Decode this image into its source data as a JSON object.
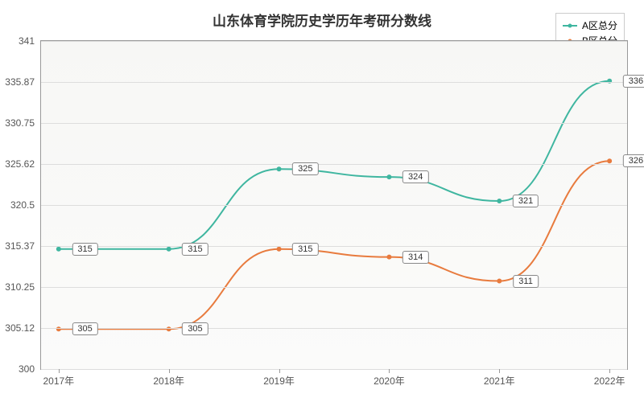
{
  "chart": {
    "title": "山东体育学院历史学历年考研分数线",
    "title_fontsize": 17,
    "title_color": "#333333",
    "background_color": "#ffffff",
    "plot_background": "linear-gradient(#f7f7f5, #fbfbfa)",
    "grid_color": "#dddddd",
    "axis_color": "#999999",
    "tick_font_color": "#555555",
    "tick_fontsize": 12,
    "x_labels": [
      "2017年",
      "2018年",
      "2019年",
      "2020年",
      "2021年",
      "2022年"
    ],
    "y_ticks": [
      300,
      305.12,
      310.25,
      315.37,
      320.5,
      325.62,
      330.75,
      335.87,
      341
    ],
    "ylim": [
      300,
      341
    ],
    "series": [
      {
        "name": "A区总分",
        "color": "#3fb6a0",
        "line_width": 2,
        "marker_radius": 3,
        "values": [
          315,
          315,
          325,
          324,
          321,
          336
        ]
      },
      {
        "name": "B区总分",
        "color": "#e87b3e",
        "line_width": 2,
        "marker_radius": 3,
        "values": [
          305,
          305,
          315,
          314,
          311,
          326
        ]
      }
    ],
    "label_box": {
      "border_color": "#888888",
      "bg": "#ffffff",
      "fontsize": 11
    },
    "legend": {
      "border_color": "#cccccc",
      "bg": "#ffffff",
      "fontsize": 12
    }
  }
}
